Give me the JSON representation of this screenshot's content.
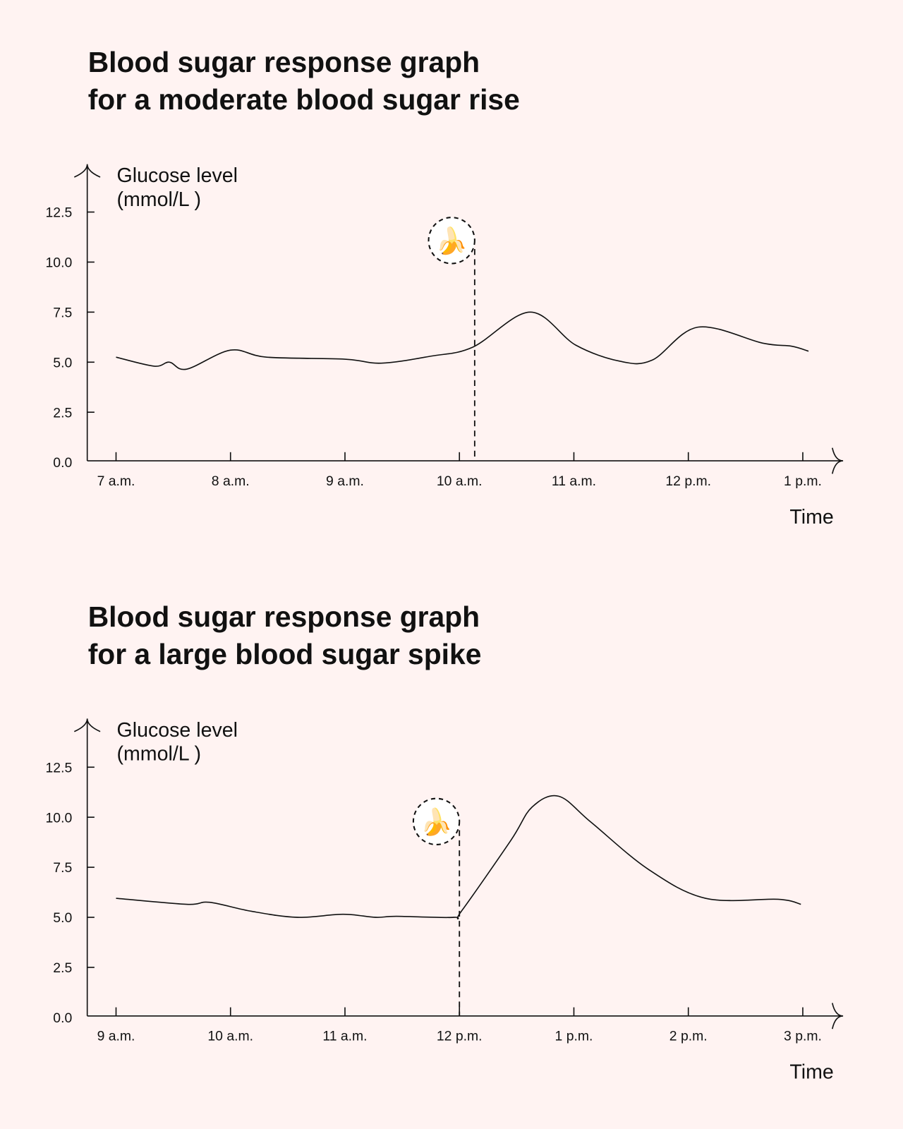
{
  "background": "#fff3f2",
  "chart_data": [
    {
      "type": "line",
      "title_line1": "Blood sugar response graph",
      "title_line2": "for a moderate blood sugar rise",
      "ylabel_line1": "Glucose level",
      "ylabel_line2": "(mmol/L )",
      "xlabel": "Time",
      "yticks": [
        "0.0",
        "2.5",
        "5.0",
        "7.5",
        "10.0",
        "12.5"
      ],
      "xticks": [
        "7 a.m.",
        "8 a.m.",
        "9 a.m.",
        "10 a.m.",
        "11 a.m.",
        "12 p.m.",
        "1 p.m."
      ],
      "ylim": [
        0,
        14
      ],
      "grid": false,
      "annotation": {
        "icon": "banana-icon",
        "glyph": "🍌",
        "time": "10:08"
      },
      "series": [
        {
          "x": [
            "7:00",
            "7:20",
            "7:28",
            "7:37",
            "8:00",
            "8:19",
            "9:00",
            "9:19",
            "9:45",
            "10:07",
            "10:37",
            "11:01",
            "11:24",
            "11:41",
            "12:05",
            "12:39",
            "12:54",
            "13:03"
          ],
          "y": [
            5.25,
            4.8,
            5.0,
            4.65,
            5.6,
            5.25,
            5.15,
            4.95,
            5.3,
            5.75,
            7.5,
            5.85,
            5.05,
            5.1,
            6.75,
            5.95,
            5.8,
            5.55
          ]
        }
      ]
    },
    {
      "type": "line",
      "title_line1": "Blood sugar response graph",
      "title_line2": "for a large blood sugar spike",
      "ylabel_line1": "Glucose level",
      "ylabel_line2": "(mmol/L )",
      "xlabel": "Time",
      "yticks": [
        "0.0",
        "2.5",
        "5.0",
        "7.5",
        "10.0",
        "12.5"
      ],
      "xticks": [
        "9 a.m.",
        "10 a.m.",
        "11 a.m.",
        "12 p.m.",
        "1 p.m.",
        "2 p.m.",
        "3 p.m."
      ],
      "ylim": [
        0,
        14
      ],
      "grid": false,
      "annotation": {
        "icon": "banana-icon",
        "glyph": "🍌",
        "time": "12:00"
      },
      "series": [
        {
          "x": [
            "9:00",
            "9:37",
            "9:49",
            "10:11",
            "10:35",
            "10:59",
            "11:16",
            "11:27",
            "11:57",
            "12:01",
            "12:27",
            "12:38",
            "12:52",
            "13:09",
            "13:39",
            "14:09",
            "14:47",
            "14:59"
          ],
          "y": [
            5.95,
            5.65,
            5.75,
            5.3,
            5.0,
            5.15,
            5.0,
            5.05,
            5.0,
            5.3,
            8.85,
            10.5,
            11.05,
            9.75,
            7.4,
            5.95,
            5.9,
            5.65
          ]
        }
      ]
    }
  ]
}
